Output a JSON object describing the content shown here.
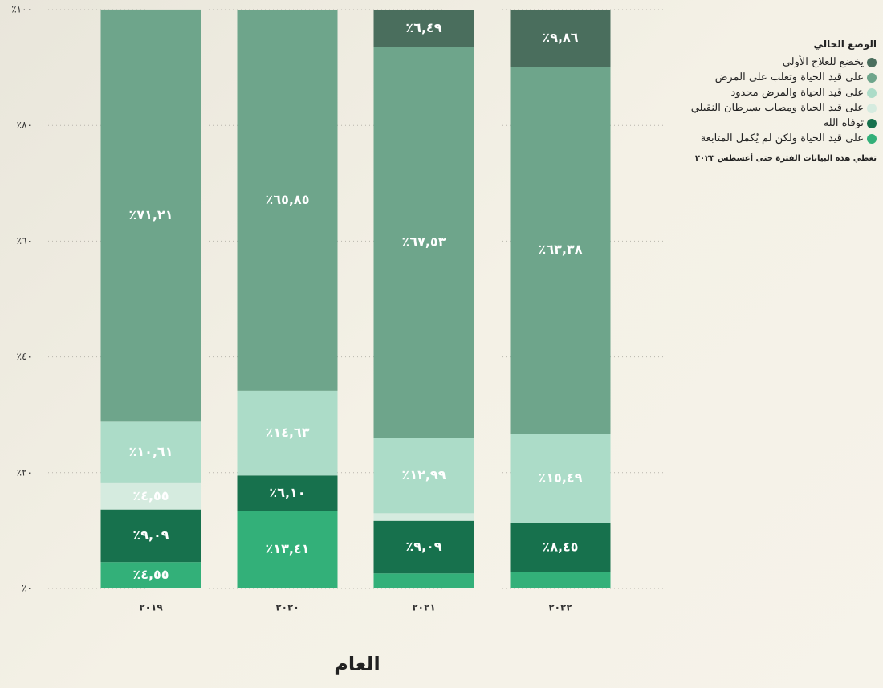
{
  "chart_data": {
    "type": "stacked_bar",
    "x_label": "العام",
    "categories": [
      "٢٠١٩",
      "٢٠٢٠",
      "٢٠٢١",
      "٢٠٢٢"
    ],
    "legend_title": "الوضع الحالي",
    "note": "تغطي هذه البيانات الفترة حتى أغسطس ٢٠٢٣",
    "legend_position": "right",
    "grid": true,
    "ylim": [
      0,
      100
    ],
    "yticks": [
      {
        "value": 0,
        "label": "٪٠"
      },
      {
        "value": 20,
        "label": "٪٢٠"
      },
      {
        "value": 40,
        "label": "٪٤٠"
      },
      {
        "value": 60,
        "label": "٪٦٠"
      },
      {
        "value": 80,
        "label": "٪٨٠"
      },
      {
        "value": 100,
        "label": "٪١٠٠"
      }
    ],
    "series": [
      {
        "name": "يخضع للعلاج الأولي",
        "color": "#4a6e5d",
        "values": [
          0,
          0,
          6.49,
          9.86
        ],
        "value_labels": [
          null,
          null,
          "٪٦,٤٩",
          "٪٩,٨٦"
        ]
      },
      {
        "name": "على قيد الحياة وتغلب على المرض",
        "color": "#6ea58b",
        "values": [
          71.21,
          65.85,
          67.53,
          63.38
        ],
        "value_labels": [
          "٪٧١,٢١",
          "٪٦٥,٨٥",
          "٪٦٧,٥٣",
          "٪٦٣,٣٨"
        ]
      },
      {
        "name": "على قيد الحياة والمرض محدود",
        "color": "#acdcc8",
        "values": [
          10.61,
          14.63,
          12.99,
          15.49
        ],
        "value_labels": [
          "٪١٠,٦١",
          "٪١٤,٦٣",
          "٪١٢,٩٩",
          "٪١٥,٤٩"
        ]
      },
      {
        "name": "على قيد الحياة ومصاب بسرطان النقيلي",
        "color": "#d5ebdf",
        "values": [
          4.55,
          0,
          1.3,
          0
        ],
        "value_labels": [
          "٪٤,٥٥",
          null,
          null,
          null
        ]
      },
      {
        "name": "توفاه الله",
        "color": "#17714d",
        "values": [
          9.09,
          6.1,
          9.09,
          8.45
        ],
        "value_labels": [
          "٪٩,٠٩",
          "٪٦,١٠",
          "٪٩,٠٩",
          "٪٨,٤٥"
        ]
      },
      {
        "name": "على قيد الحياة ولكن لم يُكمل المتابعة",
        "color": "#33b079",
        "values": [
          4.55,
          13.41,
          2.6,
          2.82
        ],
        "value_labels": [
          "٪٤,٥٥",
          "٪١٣,٤١",
          null,
          null
        ]
      }
    ]
  }
}
